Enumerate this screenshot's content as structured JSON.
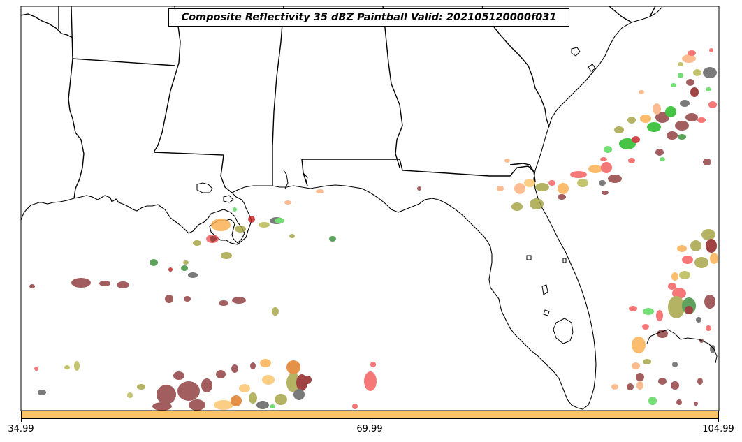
{
  "title": "Composite Reflectivity 35 dBZ Paintball Valid: 202105120000f031",
  "colorbar": {
    "color": "#fcc468",
    "ticks": [
      "34.99",
      "69.99",
      "104.99"
    ]
  },
  "map": {
    "region": "Southeastern United States and Gulf of Mexico",
    "map_element_names": [
      "coastline",
      "state-borders",
      "lakes"
    ],
    "paintball_colors": [
      "#f45a5a",
      "#fcae7a",
      "#fcc468",
      "#56d856",
      "#7d9e50",
      "#b8b84f",
      "#a3a341",
      "#9a5a5a",
      "#8e3b3b",
      "#5e5e5e",
      "#8b1a1a",
      "#1db81d"
    ]
  }
}
